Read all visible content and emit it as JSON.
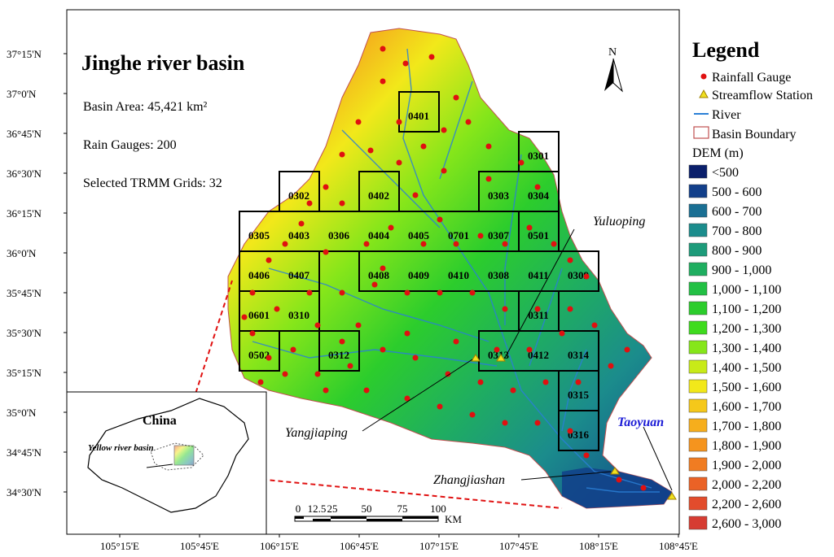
{
  "map": {
    "title": "Jinghe river basin",
    "info": [
      "Basin Area: 45,421 km²",
      "Rain Gauges: 200",
      "Selected TRMM Grids: 32"
    ],
    "lat_labels": [
      "37°15'N",
      "37°0'N",
      "36°45'N",
      "36°30'N",
      "36°15'N",
      "36°0'N",
      "35°45'N",
      "35°30'N",
      "35°15'N",
      "35°0'N",
      "34°45'N",
      "34°30'N"
    ],
    "lon_labels": [
      "105°15'E",
      "105°45'E",
      "106°15'E",
      "106°45'E",
      "107°15'E",
      "107°45'E",
      "108°15'E",
      "108°45'E"
    ],
    "north": "N",
    "scale": {
      "ticks": [
        "0",
        "12.5",
        "25",
        "50",
        "75",
        "100"
      ],
      "unit": "KM"
    },
    "grids": [
      "0401",
      "0301",
      "0302",
      "0402",
      "0303",
      "0304",
      "0305",
      "0403",
      "0306",
      "0404",
      "0405",
      "0701",
      "0307",
      "0501",
      "0406",
      "0407",
      "0408",
      "0409",
      "0410",
      "0308",
      "0411",
      "0309",
      "0601",
      "0310",
      "0311",
      "0502",
      "0312",
      "0313",
      "0412",
      "0314",
      "0315",
      "0316"
    ],
    "stations": {
      "yuluoping": "Yuluoping",
      "yangjiaping": "Yangjiaping",
      "zhangjiashan": "Zhangjiashan",
      "taoyuan": "Taoyuan"
    },
    "inset": {
      "title": "China",
      "label": "Yellow river basin"
    },
    "colors": {
      "taoyuan": "#1a1ad6",
      "gauge": "#e01010",
      "river": "#2a7fd6",
      "station": "#f0e020"
    }
  },
  "legend": {
    "title": "Legend",
    "symbols": [
      {
        "label": "Rainfall Gauge",
        "icon": "red-dot"
      },
      {
        "label": "Streamflow Station",
        "icon": "yellow-triangle"
      },
      {
        "label": "River",
        "icon": "blue-line"
      },
      {
        "label": "Basin Boundary",
        "icon": "red-outline-box"
      }
    ],
    "dem_title": "DEM (m)",
    "dem": [
      {
        "label": "<500",
        "color": "#0a1f6b"
      },
      {
        "label": "500 - 600",
        "color": "#123f8a"
      },
      {
        "label": "600 - 700",
        "color": "#1a6f93"
      },
      {
        "label": "700 - 800",
        "color": "#1b8c8c"
      },
      {
        "label": "800 - 900",
        "color": "#1d9b7a"
      },
      {
        "label": "900 - 1,000",
        "color": "#1fae60"
      },
      {
        "label": "1,000 - 1,100",
        "color": "#22c044"
      },
      {
        "label": "1,100 - 1,200",
        "color": "#2ccd2c"
      },
      {
        "label": "1,200 - 1,300",
        "color": "#3fdb1e"
      },
      {
        "label": "1,300 - 1,400",
        "color": "#86e61a"
      },
      {
        "label": "1,400 - 1,500",
        "color": "#c8ea18"
      },
      {
        "label": "1,500 - 1,600",
        "color": "#f2e81a"
      },
      {
        "label": "1,600 - 1,700",
        "color": "#f5c81a"
      },
      {
        "label": "1,700 - 1,800",
        "color": "#f6ae1c"
      },
      {
        "label": "1,800 - 1,900",
        "color": "#f5941e"
      },
      {
        "label": "1,900 - 2,000",
        "color": "#f07c22"
      },
      {
        "label": "2,000 - 2,200",
        "color": "#ea6226"
      },
      {
        "label": "2,200 - 2,600",
        "color": "#e24c2c"
      },
      {
        "label": "2,600 - 3,000",
        "color": "#d63c32"
      }
    ]
  }
}
